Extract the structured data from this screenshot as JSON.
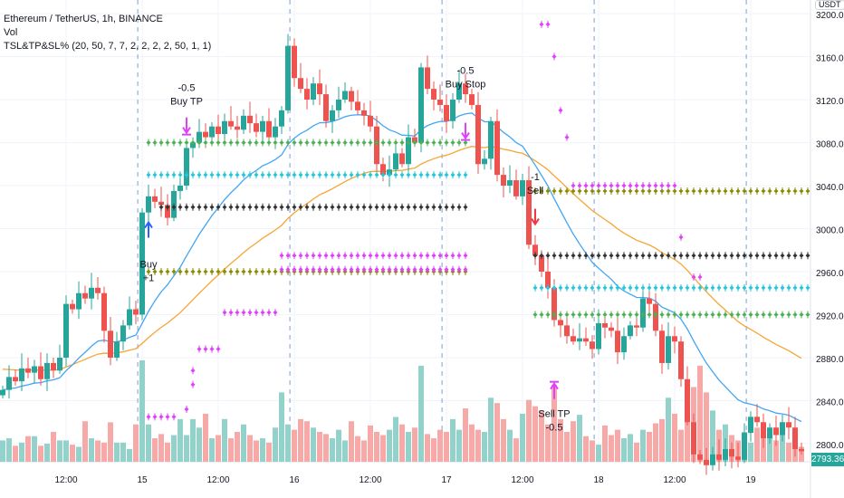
{
  "header": {
    "symbol_line": "Ethereum / TetherUS, 1h, BINANCE",
    "volume_label": "Vol",
    "indicator_label": "TSL&TP&SL% (20, 50, 7, 7, 2, 2, 2, 2, 50, 1, 1)"
  },
  "price_axis": {
    "currency": "USDT",
    "current_price": "2793.36"
  },
  "colors": {
    "up": "#26a69a",
    "down": "#ef5350",
    "vol_up": "#92d2cb",
    "vol_down": "#f7a9a7",
    "ema_fast": "#42a5f5",
    "ema_slow": "#f7a535",
    "grid": "#f0f3fa",
    "day_line": "#7b9fd9",
    "magenta": "#e040fb"
  },
  "chart_data": {
    "type": "candlestick",
    "title": "Ethereum / TetherUS, 1h, BINANCE",
    "ylim": [
      2780,
      3210
    ],
    "y_ticks": [
      "3200.00",
      "3160.00",
      "3120.00",
      "3080.00",
      "3040.00",
      "3000.00",
      "2960.00",
      "2920.00",
      "2880.00",
      "2840.00",
      "2800.00"
    ],
    "x_ticks": [
      {
        "label": "12:00",
        "index": 10
      },
      {
        "label": "15",
        "index": 22
      },
      {
        "label": "12:00",
        "index": 34
      },
      {
        "label": "16",
        "index": 46
      },
      {
        "label": "12:00",
        "index": 58
      },
      {
        "label": "17",
        "index": 70
      },
      {
        "label": "12:00",
        "index": 82
      },
      {
        "label": "18",
        "index": 94
      },
      {
        "label": "12:00",
        "index": 106
      },
      {
        "label": "19",
        "index": 118
      }
    ],
    "day_separators": [
      21.3,
      45.3,
      69.3,
      93.3,
      117.3
    ],
    "close": [
      2850,
      2862,
      2858,
      2870,
      2866,
      2872,
      2860,
      2875,
      2868,
      2880,
      2930,
      2925,
      2940,
      2935,
      2945,
      2940,
      2905,
      2880,
      2895,
      2910,
      2925,
      2920,
      3015,
      3030,
      3025,
      3022,
      3010,
      3035,
      3040,
      3075,
      3080,
      3090,
      3085,
      3095,
      3088,
      3100,
      3095,
      3092,
      3105,
      3098,
      3090,
      3100,
      3085,
      3095,
      3110,
      3170,
      3140,
      3130,
      3120,
      3135,
      3125,
      3100,
      3110,
      3120,
      3128,
      3118,
      3110,
      3105,
      3095,
      3060,
      3050,
      3055,
      3070,
      3060,
      3085,
      3080,
      3150,
      3130,
      3120,
      3115,
      3100,
      3120,
      3135,
      3125,
      3115,
      3060,
      3065,
      3100,
      3050,
      3040,
      3045,
      3030,
      3045,
      2985,
      2975,
      2960,
      2945,
      2915,
      2910,
      2900,
      2895,
      2898,
      2895,
      2888,
      2912,
      2908,
      2905,
      2885,
      2900,
      2910,
      2908,
      2935,
      2930,
      2905,
      2875,
      2900,
      2895,
      2860,
      2820,
      2790,
      2785,
      2780,
      2790,
      2785,
      2795,
      2788,
      2785,
      2810,
      2825,
      2820,
      2805,
      2815,
      2808,
      2820,
      2815,
      2795,
      2793
    ],
    "volume": [
      20,
      22,
      15,
      18,
      24,
      24,
      15,
      17,
      28,
      20,
      20,
      16,
      14,
      38,
      22,
      20,
      18,
      37,
      18,
      18,
      12,
      35,
      95,
      35,
      22,
      26,
      18,
      25,
      40,
      25,
      40,
      32,
      45,
      22,
      25,
      40,
      22,
      28,
      35,
      25,
      20,
      22,
      18,
      32,
      65,
      35,
      30,
      40,
      38,
      32,
      28,
      26,
      22,
      30,
      20,
      38,
      24,
      20,
      34,
      28,
      25,
      30,
      42,
      35,
      28,
      32,
      90,
      26,
      22,
      30,
      28,
      40,
      30,
      50,
      35,
      30,
      28,
      60,
      55,
      40,
      30,
      22,
      45,
      58,
      52,
      48,
      35,
      72,
      40,
      28,
      38,
      44,
      24,
      20,
      16,
      34,
      25,
      30,
      22,
      26,
      18,
      30,
      28,
      36,
      40,
      60,
      45,
      30,
      55,
      70,
      90,
      65,
      48,
      30,
      35,
      25,
      20,
      28,
      18,
      32,
      22,
      30,
      20,
      28,
      18,
      22,
      14
    ],
    "ema_fast_period": 20,
    "ema_slow_period": 50,
    "levels": [
      {
        "name": "buy-tp2-level",
        "price": 3080,
        "from": 23,
        "to": 73,
        "color": "#4caf50"
      },
      {
        "name": "buy-tp1-level",
        "price": 3050,
        "from": 23,
        "to": 73,
        "color": "#26c6da"
      },
      {
        "name": "buy-entry-level",
        "price": 3020,
        "from": 25,
        "to": 73,
        "color": "#333333"
      },
      {
        "name": "buy-sl-level",
        "price": 2960,
        "from": 23,
        "to": 73,
        "color": "#8b8b00"
      },
      {
        "name": "magenta-level-a",
        "price": 2975,
        "from": 44,
        "to": 73,
        "color": "#e040fb"
      },
      {
        "name": "magenta-level-b",
        "price": 2962,
        "from": 44,
        "to": 73,
        "color": "#e040fb"
      },
      {
        "name": "sell-sl-level",
        "price": 3035,
        "from": 84,
        "to": 127,
        "color": "#8b8b00"
      },
      {
        "name": "sell-entry-level",
        "price": 2975,
        "from": 84,
        "to": 127,
        "color": "#333333"
      },
      {
        "name": "sell-tp1-level",
        "price": 2945,
        "from": 84,
        "to": 127,
        "color": "#26c6da"
      },
      {
        "name": "sell-tp2-level",
        "price": 2920,
        "from": 84,
        "to": 127,
        "color": "#4caf50"
      }
    ],
    "trailing_stop": [
      [
        23,
        2825
      ],
      [
        24,
        2825
      ],
      [
        25,
        2825
      ],
      [
        26,
        2825
      ],
      [
        27,
        2825
      ],
      [
        29,
        2832
      ],
      [
        30,
        2855
      ],
      [
        30,
        2868
      ],
      [
        31,
        2888
      ],
      [
        32,
        2888
      ],
      [
        33,
        2888
      ],
      [
        34,
        2888
      ],
      [
        35,
        2922
      ],
      [
        36,
        2922
      ],
      [
        37,
        2922
      ],
      [
        38,
        2922
      ],
      [
        39,
        2922
      ],
      [
        40,
        2922
      ],
      [
        41,
        2922
      ],
      [
        42,
        2922
      ],
      [
        43,
        2922
      ],
      [
        85,
        3190
      ],
      [
        86,
        3190
      ],
      [
        87,
        3160
      ],
      [
        88,
        3110
      ],
      [
        89,
        3085
      ],
      [
        90,
        3040
      ],
      [
        91,
        3040
      ],
      [
        92,
        3040
      ],
      [
        93,
        3040
      ],
      [
        94,
        3040
      ],
      [
        95,
        3040
      ],
      [
        96,
        3040
      ],
      [
        97,
        3040
      ],
      [
        98,
        3040
      ],
      [
        99,
        3040
      ],
      [
        100,
        3040
      ],
      [
        101,
        3040
      ],
      [
        102,
        3040
      ],
      [
        103,
        3040
      ],
      [
        104,
        3040
      ],
      [
        105,
        3040
      ],
      [
        106,
        3040
      ],
      [
        107,
        2992
      ],
      [
        109,
        2955
      ],
      [
        110,
        2955
      ]
    ],
    "signals": [
      {
        "type": "buy",
        "index": 23,
        "price": 3005,
        "line1": "Buy",
        "line2": "+1",
        "label_price": 2964
      },
      {
        "type": "buy-tp",
        "index": 29,
        "price": 3090,
        "line1": "-0.5",
        "line2": "Buy TP",
        "label_price": 3128
      },
      {
        "type": "buy-stop",
        "index": 73,
        "price": 3085,
        "line1": "-0.5",
        "line2": "Buy Stop",
        "label_price": 3144
      },
      {
        "type": "sell",
        "index": 84,
        "price": 3005,
        "line1": "-1",
        "line2": "Sell",
        "label_price": 3045
      },
      {
        "type": "sell-tp",
        "index": 87,
        "price": 2855,
        "line1": "Sell TP",
        "line2": "-0.5",
        "label_price": 2825
      }
    ]
  }
}
